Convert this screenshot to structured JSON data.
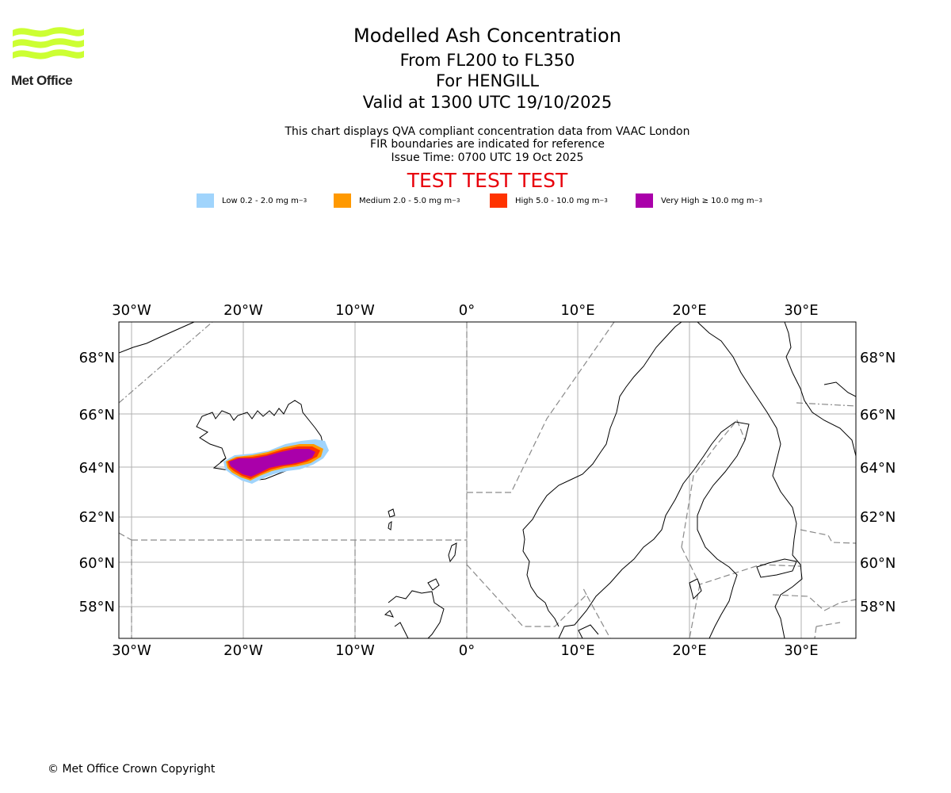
{
  "logo": {
    "text": "Met Office",
    "color": "#ccff33"
  },
  "title": {
    "main": "Modelled Ash Concentration",
    "levels": "From FL200 to FL350",
    "volcano": "For HENGILL",
    "valid": "Valid at 1300 UTC 19/10/2025"
  },
  "subtitle": {
    "line1": "This chart displays QVA compliant concentration data from VAAC London",
    "line2": "FIR boundaries are indicated for reference",
    "line3": "Issue Time: 0700 UTC 19 Oct 2025"
  },
  "test_banner": "TEST TEST TEST",
  "legend": [
    {
      "label": "Low 0.2 - 2.0 mg m",
      "unit_exp": "−3",
      "color": "#a0d4fc"
    },
    {
      "label": "Medium 2.0 - 5.0 mg m",
      "unit_exp": "−3",
      "color": "#ff9900"
    },
    {
      "label": "High 5.0 - 10.0 mg m",
      "unit_exp": "−3",
      "color": "#ff3300"
    },
    {
      "label": "Very High ≥ 10.0 mg m",
      "unit_exp": "−3",
      "color": "#aa00aa"
    }
  ],
  "map": {
    "lon_labels": [
      "30°W",
      "20°W",
      "10°W",
      "0°",
      "10°E",
      "20°E",
      "30°E"
    ],
    "lat_labels": [
      "68°N",
      "66°N",
      "64°N",
      "62°N",
      "60°N",
      "58°N"
    ]
  },
  "copyright": "© Met Office Crown Copyright"
}
